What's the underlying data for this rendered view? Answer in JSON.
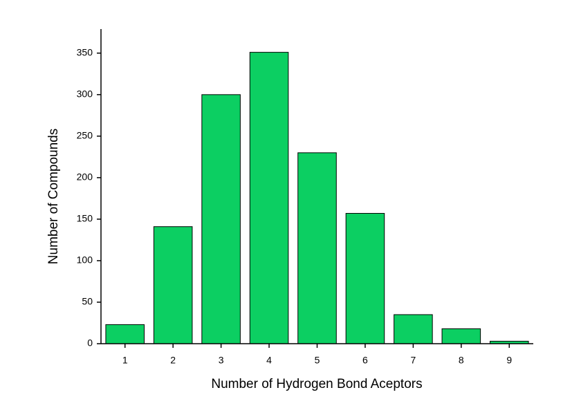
{
  "chart_data": {
    "type": "bar",
    "x_label": "Number of Hydrogen Bond Aceptors",
    "y_label": "Number of Compounds",
    "categories": [
      "1",
      "2",
      "3",
      "4",
      "5",
      "6",
      "7",
      "8",
      "9"
    ],
    "values": [
      23,
      141,
      300,
      351,
      230,
      157,
      35,
      18,
      3
    ],
    "color": "#0ccf62",
    "ylim": [
      0,
      379
    ],
    "yticks": [
      0,
      50,
      100,
      150,
      200,
      250,
      300,
      350
    ],
    "grid": false
  }
}
